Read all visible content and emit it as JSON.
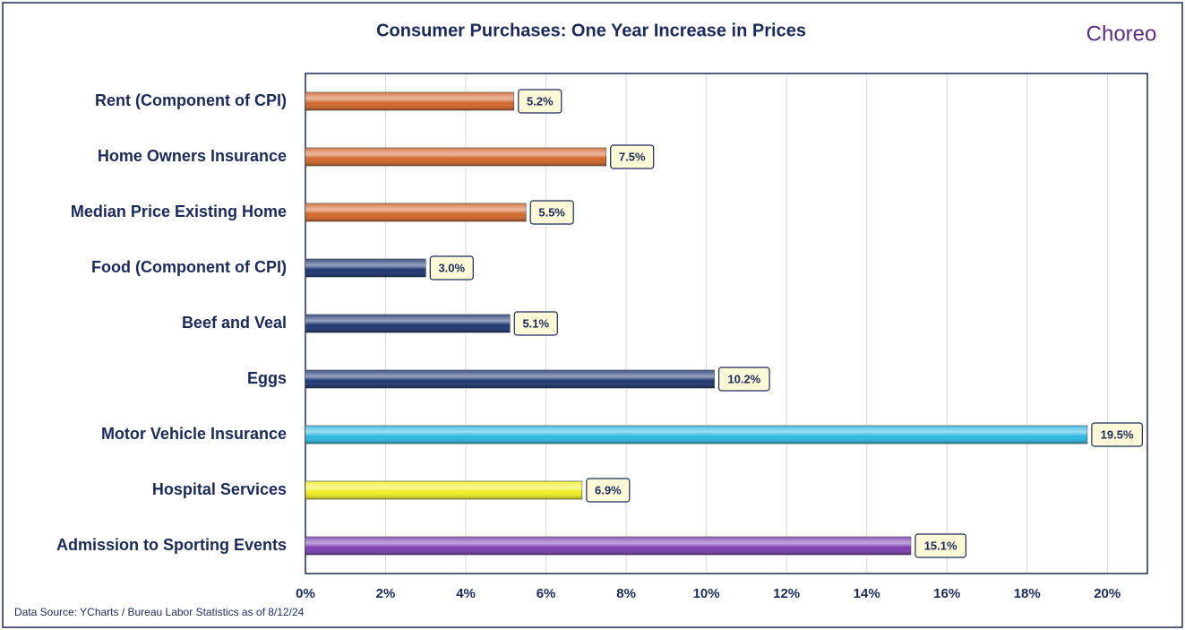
{
  "chart_data": {
    "type": "bar",
    "orientation": "horizontal",
    "title": "Consumer Purchases: One Year Increase in Prices",
    "logo": "Choreo",
    "source": "Data Source: YCharts / Bureau Labor Statistics  as of 8/12/24",
    "categories": [
      "Rent (Component of CPI)",
      "Home Owners Insurance",
      "Median Price Existing Home",
      "Food (Component of CPI)",
      "Beef and Veal",
      "Eggs",
      "Motor Vehicle Insurance",
      "Hospital Services",
      "Admission to Sporting Events"
    ],
    "values": [
      5.2,
      7.5,
      5.5,
      3.0,
      5.1,
      10.2,
      19.5,
      6.9,
      15.1
    ],
    "value_labels": [
      "5.2%",
      "7.5%",
      "5.5%",
      "3.0%",
      "5.1%",
      "10.2%",
      "19.5%",
      "6.9%",
      "15.1%"
    ],
    "colors": [
      "#d2652a",
      "#d2652a",
      "#d2652a",
      "#1b3470",
      "#1b3470",
      "#1b3470",
      "#2bb7e3",
      "#eeee22",
      "#7b3db3"
    ],
    "xlim": [
      0,
      21
    ],
    "xticks": [
      {
        "value": 0,
        "label": "0%"
      },
      {
        "value": 2,
        "label": "2%"
      },
      {
        "value": 4,
        "label": "4%"
      },
      {
        "value": 6,
        "label": "6%"
      },
      {
        "value": 8,
        "label": "8%"
      },
      {
        "value": 10,
        "label": "10%"
      },
      {
        "value": 12,
        "label": "12%"
      },
      {
        "value": 14,
        "label": "14%"
      },
      {
        "value": 16,
        "label": "16%"
      },
      {
        "value": 18,
        "label": "18%"
      },
      {
        "value": 20,
        "label": "20%"
      }
    ],
    "grid": true
  }
}
